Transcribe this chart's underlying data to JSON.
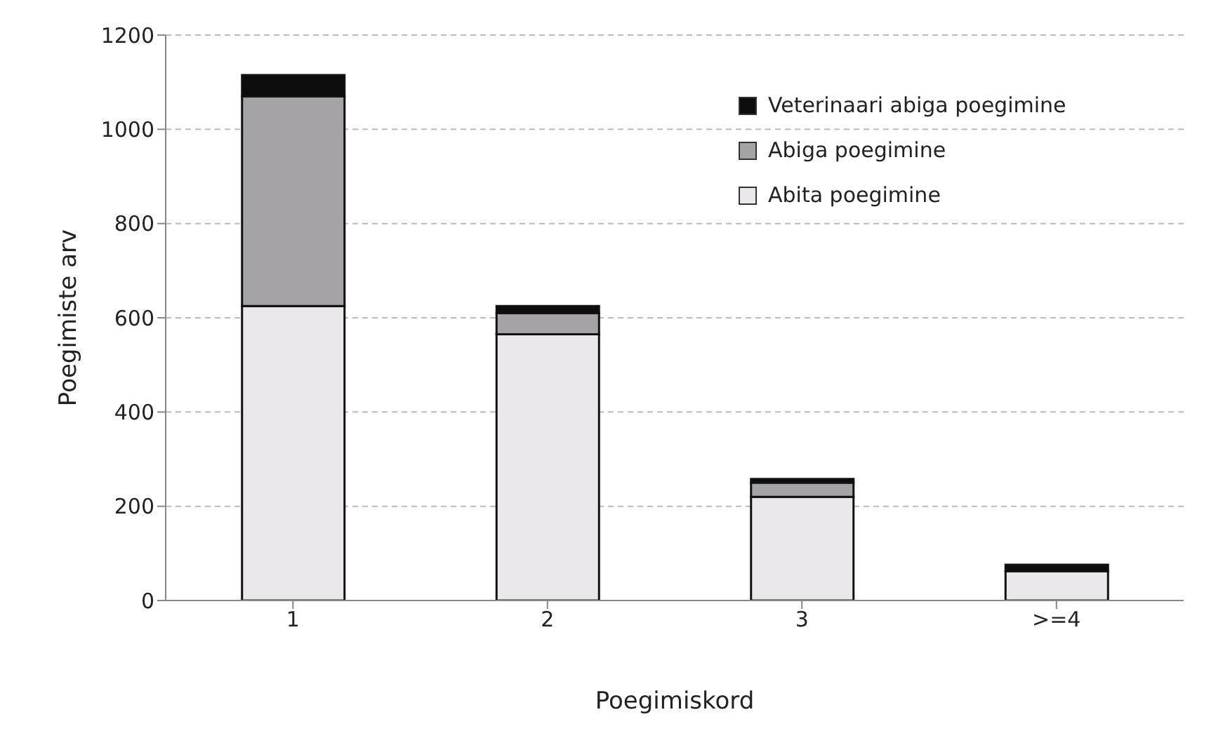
{
  "chart_data": {
    "type": "bar",
    "stacked": true,
    "xlabel": "Poegimiskord",
    "ylabel": "Poegimiste arv",
    "categories": [
      "1",
      "2",
      "3",
      ">=4"
    ],
    "series": [
      {
        "name": "Abita poegimine",
        "color": "#ebe8eb",
        "values": [
          625,
          565,
          220,
          62
        ]
      },
      {
        "name": "Abiga poegimine",
        "color": "#a6a3a6",
        "values": [
          445,
          45,
          30,
          0
        ]
      },
      {
        "name": "Veterinaari abiga poegimine",
        "color": "#0d0d0d",
        "values": [
          45,
          15,
          8,
          14
        ]
      }
    ],
    "ylim": [
      0,
      1200
    ],
    "yticks": [
      0,
      200,
      400,
      600,
      800,
      1000,
      1200
    ],
    "grid": "y",
    "legend": "top right"
  }
}
